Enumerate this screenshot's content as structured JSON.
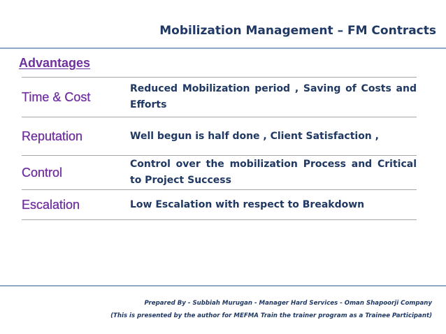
{
  "slide": {
    "title": "Mobilization Management – FM Contracts",
    "section_heading": "Advantages",
    "advantages": [
      {
        "label": "Time & Cost",
        "description": "Reduced Mobilization period , Saving of Costs and Efforts"
      },
      {
        "label": "Reputation",
        "description": "Well begun is half done , Client Satisfaction ,"
      },
      {
        "label": "Control",
        "description": "Control over the mobilization Process and Critical to Project Success"
      },
      {
        "label": "Escalation",
        "description": "Low Escalation with respect to Breakdown"
      }
    ],
    "footer": {
      "line1": "Prepared By - Subbiah Murugan - Manager Hard Services - Oman Shapoorji Company",
      "line2": "(This is presented by the author for MEFMA Train the trainer program as a Trainee Participant)"
    }
  },
  "colors": {
    "title": "#1f3864",
    "label": "#7030a0",
    "rule": "#8ea9c6",
    "row_border": "#a6a6a6"
  }
}
